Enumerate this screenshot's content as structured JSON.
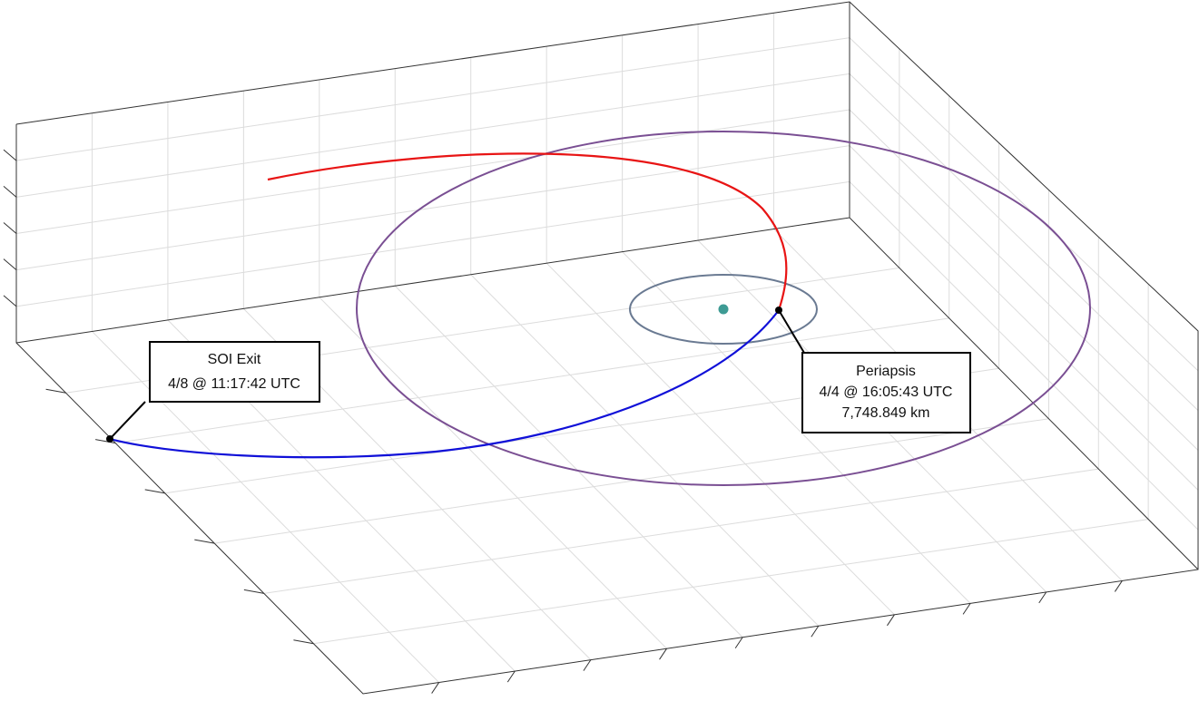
{
  "annotations": [
    {
      "title": "SOI Exit",
      "time": "4/8 @ 11:17:42 UTC"
    },
    {
      "title": "Periapsis",
      "time": "4/4 @ 16:05:43 UTC",
      "distance": "7,748.849 km"
    }
  ]
}
